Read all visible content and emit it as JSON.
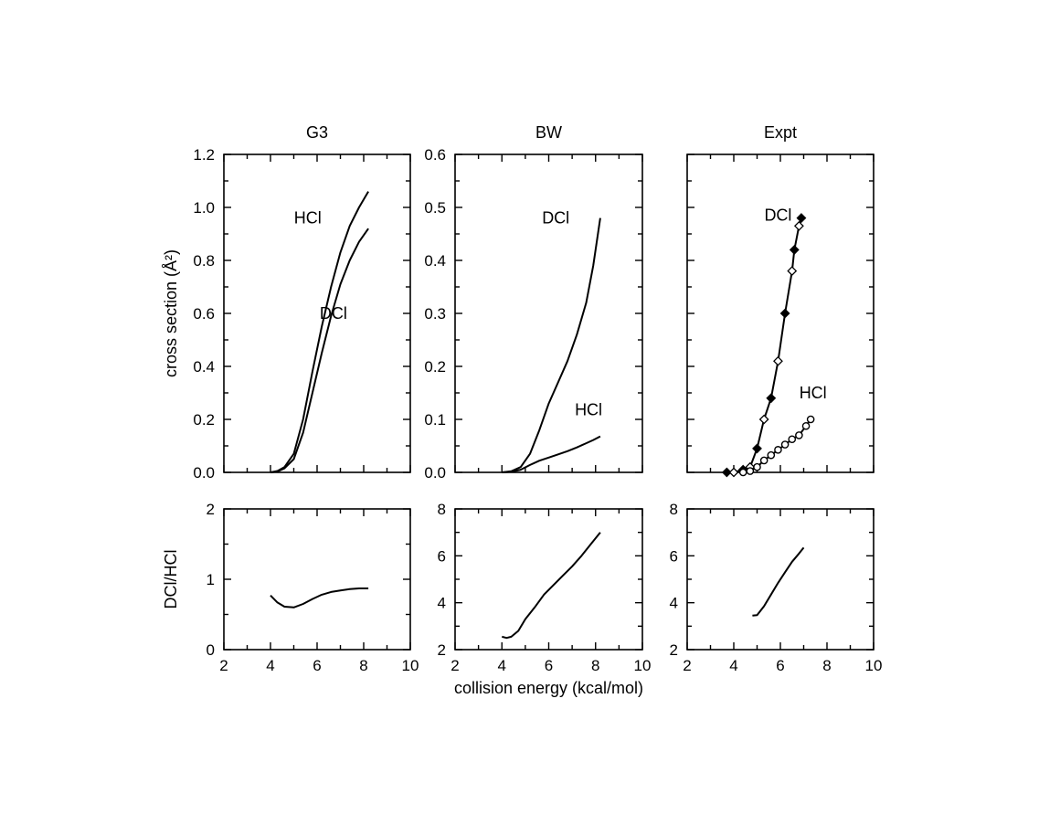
{
  "chart_data": [
    {
      "type": "line",
      "title": "G3",
      "ylabel": "cross section (Å²)",
      "xlim": [
        2,
        10
      ],
      "ylim": [
        0,
        1.2
      ],
      "yticks": [
        0.0,
        0.2,
        0.4,
        0.6,
        0.8,
        1.0,
        1.2
      ],
      "ytick_labels": [
        "0.0",
        "0.2",
        "0.4",
        "0.6",
        "0.8",
        "1.0",
        "1.2"
      ],
      "show_xtick_labels": false,
      "series": [
        {
          "name": "HCl",
          "x": [
            4.0,
            4.3,
            4.6,
            5.0,
            5.4,
            5.8,
            6.2,
            6.6,
            7.0,
            7.4,
            7.8,
            8.2
          ],
          "y": [
            0.0,
            0.005,
            0.02,
            0.07,
            0.2,
            0.38,
            0.55,
            0.7,
            0.83,
            0.93,
            1.0,
            1.06
          ]
        },
        {
          "name": "DCl",
          "x": [
            4.0,
            4.3,
            4.6,
            5.0,
            5.4,
            5.8,
            6.2,
            6.6,
            7.0,
            7.4,
            7.8,
            8.2
          ],
          "y": [
            0.0,
            0.003,
            0.015,
            0.05,
            0.15,
            0.3,
            0.45,
            0.59,
            0.71,
            0.8,
            0.87,
            0.92
          ]
        }
      ],
      "annotations": [
        {
          "text": "HCl",
          "x": 5.6,
          "y": 0.94
        },
        {
          "text": "DCl",
          "x": 6.7,
          "y": 0.58
        }
      ]
    },
    {
      "type": "line",
      "title": "BW",
      "xlim": [
        2,
        10
      ],
      "ylim": [
        0,
        0.6
      ],
      "yticks": [
        0.0,
        0.1,
        0.2,
        0.3,
        0.4,
        0.5,
        0.6
      ],
      "ytick_labels": [
        "0.0",
        "0.1",
        "0.2",
        "0.3",
        "0.4",
        "0.5",
        "0.6"
      ],
      "show_xtick_labels": false,
      "series": [
        {
          "name": "DCl",
          "x": [
            4.0,
            4.4,
            4.8,
            5.2,
            5.6,
            6.0,
            6.4,
            6.8,
            7.2,
            7.6,
            7.9,
            8.2
          ],
          "y": [
            0.0,
            0.002,
            0.01,
            0.035,
            0.08,
            0.13,
            0.17,
            0.21,
            0.26,
            0.32,
            0.39,
            0.48
          ]
        },
        {
          "name": "HCl",
          "x": [
            4.0,
            4.4,
            4.8,
            5.2,
            5.6,
            6.0,
            6.4,
            6.8,
            7.2,
            7.6,
            7.9,
            8.2
          ],
          "y": [
            0.0,
            0.001,
            0.005,
            0.014,
            0.022,
            0.028,
            0.034,
            0.04,
            0.047,
            0.055,
            0.061,
            0.068
          ]
        }
      ],
      "annotations": [
        {
          "text": "DCl",
          "x": 6.3,
          "y": 0.47
        },
        {
          "text": "HCl",
          "x": 7.7,
          "y": 0.108
        }
      ]
    },
    {
      "type": "line",
      "title": "Expt",
      "xlim": [
        2,
        10
      ],
      "ylim": [
        0,
        1.2
      ],
      "yticks": [
        0.0,
        0.2,
        0.4,
        0.6,
        0.8,
        1.0,
        1.2
      ],
      "show_ytick_labels": false,
      "show_xtick_labels": false,
      "series": [
        {
          "name": "DCl",
          "marker": "diamond",
          "x": [
            3.7,
            4.0,
            4.4,
            4.7,
            5.0,
            5.3,
            5.6,
            5.9,
            6.2,
            6.5,
            6.6,
            6.8,
            6.9
          ],
          "y": [
            0.0,
            0.0,
            0.01,
            0.02,
            0.09,
            0.2,
            0.28,
            0.42,
            0.6,
            0.76,
            0.84,
            0.93,
            0.96
          ]
        },
        {
          "name": "HCl",
          "marker": "circle",
          "x": [
            4.4,
            4.7,
            5.0,
            5.3,
            5.6,
            5.9,
            6.2,
            6.5,
            6.8,
            7.1,
            7.3
          ],
          "y": [
            0.0,
            0.005,
            0.02,
            0.045,
            0.065,
            0.085,
            0.105,
            0.125,
            0.14,
            0.175,
            0.2
          ]
        }
      ],
      "annotations": [
        {
          "text": "DCl",
          "x": 5.9,
          "y": 0.95
        },
        {
          "text": "HCl",
          "x": 7.4,
          "y": 0.28
        }
      ]
    },
    {
      "type": "line",
      "ylabel": "DCl/HCl",
      "xlim": [
        2,
        10
      ],
      "ylim": [
        0,
        2
      ],
      "xticks": [
        2,
        4,
        6,
        8,
        10
      ],
      "xtick_labels": [
        "2",
        "4",
        "6",
        "8",
        "10"
      ],
      "yticks": [
        0,
        1,
        2
      ],
      "ytick_labels": [
        "0",
        "1",
        "2"
      ],
      "series": [
        {
          "x": [
            4.0,
            4.3,
            4.6,
            5.0,
            5.4,
            5.8,
            6.2,
            6.6,
            7.0,
            7.4,
            7.8,
            8.2
          ],
          "y": [
            0.77,
            0.67,
            0.61,
            0.6,
            0.65,
            0.72,
            0.78,
            0.82,
            0.84,
            0.86,
            0.87,
            0.87
          ]
        }
      ]
    },
    {
      "type": "line",
      "xlabel": "collision energy (kcal/mol)",
      "xlim": [
        2,
        10
      ],
      "ylim": [
        2,
        8
      ],
      "xticks": [
        2,
        4,
        6,
        8,
        10
      ],
      "xtick_labels": [
        "2",
        "4",
        "6",
        "8",
        "10"
      ],
      "yticks": [
        2,
        4,
        6,
        8
      ],
      "ytick_labels": [
        "2",
        "4",
        "6",
        "8"
      ],
      "series": [
        {
          "x": [
            4.0,
            4.2,
            4.4,
            4.7,
            5.0,
            5.4,
            5.8,
            6.2,
            6.6,
            7.0,
            7.4,
            7.8,
            8.2
          ],
          "y": [
            2.55,
            2.5,
            2.55,
            2.8,
            3.3,
            3.8,
            4.35,
            4.75,
            5.15,
            5.55,
            6.0,
            6.5,
            7.0
          ]
        }
      ]
    },
    {
      "type": "line",
      "xlim": [
        2,
        10
      ],
      "ylim": [
        2,
        8
      ],
      "xticks": [
        2,
        4,
        6,
        8,
        10
      ],
      "xtick_labels": [
        "2",
        "4",
        "6",
        "8",
        "10"
      ],
      "yticks": [
        2,
        4,
        6,
        8
      ],
      "ytick_labels": [
        "2",
        "4",
        "6",
        "8"
      ],
      "series": [
        {
          "x": [
            4.8,
            5.0,
            5.3,
            5.6,
            5.9,
            6.2,
            6.5,
            6.8,
            7.0
          ],
          "y": [
            3.45,
            3.47,
            3.85,
            4.35,
            4.85,
            5.3,
            5.75,
            6.1,
            6.35
          ]
        }
      ]
    }
  ]
}
